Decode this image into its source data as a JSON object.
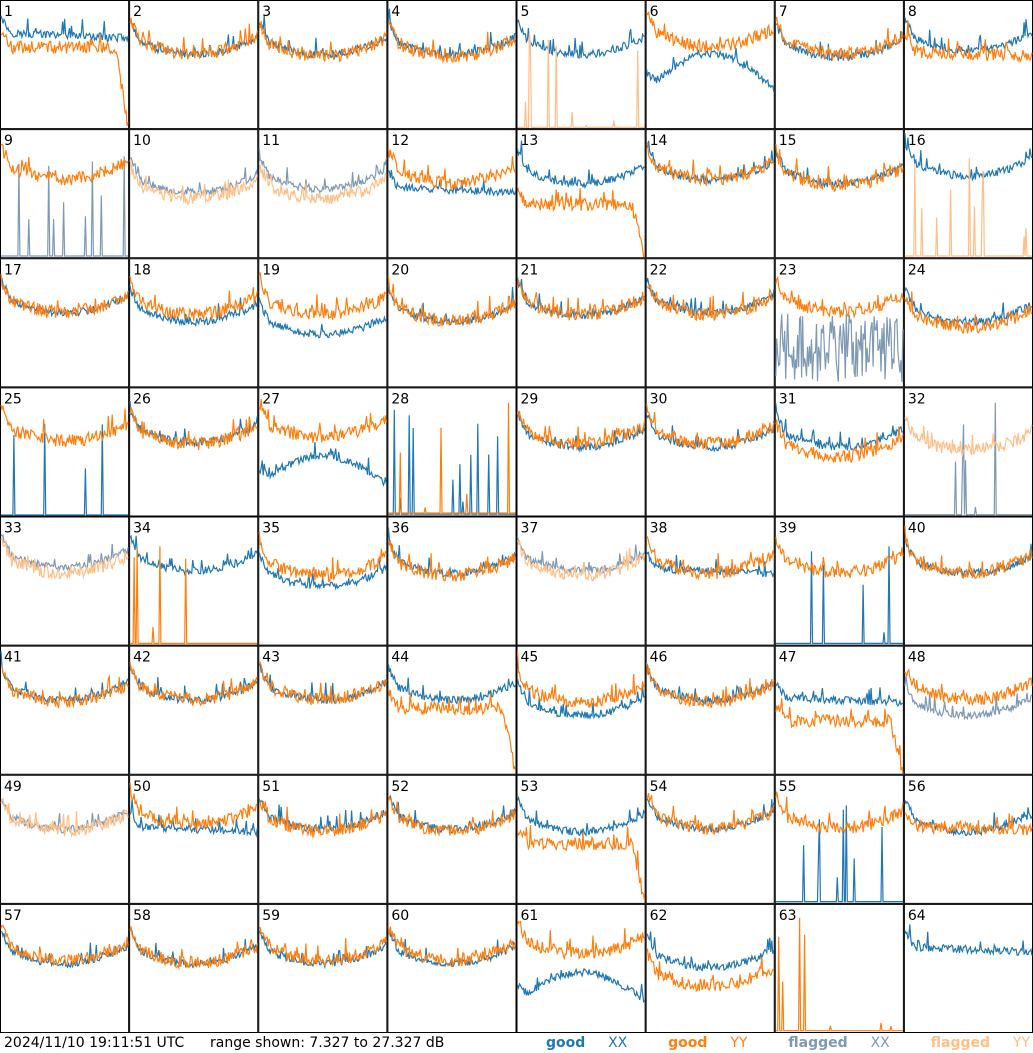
{
  "footer": {
    "timestamp": "2024/11/10 19:11:51 UTC",
    "range_text": "range shown: 7.327 to 27.327 dB"
  },
  "legend": {
    "good_xx": {
      "word": "good",
      "pol": "XX",
      "color": "#1f77b4"
    },
    "good_yy": {
      "word": "good",
      "pol": "YY",
      "color": "#ff7f0e"
    },
    "flagged_xx": {
      "word": "flagged",
      "pol": "XX",
      "color": "#7f99b4"
    },
    "flagged_yy": {
      "word": "flagged",
      "pol": "YY",
      "color": "#ffbf87"
    }
  },
  "chart_data": {
    "type": "line",
    "title": "",
    "grid_rows": 8,
    "grid_cols": 8,
    "ylim": [
      7.327,
      27.327
    ],
    "units": "dB",
    "grid": false,
    "panels": [
      {
        "label": "1",
        "xx": {
          "level": 0.7,
          "shape": "flat",
          "status": "good"
        },
        "yy": {
          "level": 0.62,
          "shape": "rolloff",
          "status": "good"
        }
      },
      {
        "label": "2",
        "xx": {
          "level": 0.62,
          "shape": "bowl",
          "status": "good"
        },
        "yy": {
          "level": 0.62,
          "shape": "bowl",
          "status": "good"
        }
      },
      {
        "label": "3",
        "xx": {
          "level": 0.62,
          "shape": "bowl",
          "status": "good"
        },
        "yy": {
          "level": 0.6,
          "shape": "bowl",
          "status": "good"
        }
      },
      {
        "label": "4",
        "xx": {
          "level": 0.62,
          "shape": "bowl",
          "status": "good"
        },
        "yy": {
          "level": 0.6,
          "shape": "bowl",
          "status": "good"
        }
      },
      {
        "label": "5",
        "xx": {
          "level": 0.62,
          "shape": "bowl",
          "status": "good"
        },
        "yy": {
          "level": 0.03,
          "shape": "spikes",
          "status": "flagged"
        }
      },
      {
        "label": "6",
        "xx": {
          "level": 0.5,
          "shape": "hump",
          "status": "good"
        },
        "yy": {
          "level": 0.68,
          "shape": "bowl",
          "status": "good"
        }
      },
      {
        "label": "7",
        "xx": {
          "level": 0.6,
          "shape": "bowl",
          "status": "good"
        },
        "yy": {
          "level": 0.62,
          "shape": "bowl",
          "status": "good"
        }
      },
      {
        "label": "8",
        "xx": {
          "level": 0.65,
          "shape": "bowl",
          "status": "good"
        },
        "yy": {
          "level": 0.55,
          "shape": "flat",
          "status": "good"
        }
      },
      {
        "label": "9",
        "xx": {
          "level": 0.05,
          "shape": "spikes",
          "status": "flagged"
        },
        "yy": {
          "level": 0.65,
          "shape": "bowl",
          "status": "good"
        }
      },
      {
        "label": "10",
        "xx": {
          "level": 0.55,
          "shape": "bowl",
          "status": "flagged"
        },
        "yy": {
          "level": 0.5,
          "shape": "bowl",
          "status": "flagged"
        }
      },
      {
        "label": "11",
        "xx": {
          "level": 0.58,
          "shape": "bowl",
          "status": "flagged"
        },
        "yy": {
          "level": 0.5,
          "shape": "bowl",
          "status": "flagged"
        }
      },
      {
        "label": "12",
        "xx": {
          "level": 0.5,
          "shape": "flat",
          "status": "good"
        },
        "yy": {
          "level": 0.62,
          "shape": "bowl",
          "status": "good"
        }
      },
      {
        "label": "13",
        "xx": {
          "level": 0.62,
          "shape": "bowl",
          "status": "good"
        },
        "yy": {
          "level": 0.4,
          "shape": "rolloff",
          "status": "good"
        }
      },
      {
        "label": "14",
        "xx": {
          "level": 0.65,
          "shape": "bowl",
          "status": "good"
        },
        "yy": {
          "level": 0.65,
          "shape": "bowl",
          "status": "good"
        }
      },
      {
        "label": "15",
        "xx": {
          "level": 0.62,
          "shape": "bowl",
          "status": "good"
        },
        "yy": {
          "level": 0.6,
          "shape": "bowl",
          "status": "good"
        }
      },
      {
        "label": "16",
        "xx": {
          "level": 0.68,
          "shape": "bowl",
          "status": "good"
        },
        "yy": {
          "level": 0.05,
          "shape": "spikes",
          "status": "flagged"
        }
      },
      {
        "label": "17",
        "xx": {
          "level": 0.62,
          "shape": "bowl",
          "status": "good"
        },
        "yy": {
          "level": 0.62,
          "shape": "bowl",
          "status": "good"
        }
      },
      {
        "label": "18",
        "xx": {
          "level": 0.55,
          "shape": "bowl",
          "status": "good"
        },
        "yy": {
          "level": 0.6,
          "shape": "bowl",
          "status": "good"
        }
      },
      {
        "label": "19",
        "xx": {
          "level": 0.45,
          "shape": "bowl",
          "status": "good"
        },
        "yy": {
          "level": 0.6,
          "shape": "bowl",
          "status": "good"
        }
      },
      {
        "label": "20",
        "xx": {
          "level": 0.55,
          "shape": "bowl",
          "status": "good"
        },
        "yy": {
          "level": 0.55,
          "shape": "bowl",
          "status": "good"
        }
      },
      {
        "label": "21",
        "xx": {
          "level": 0.6,
          "shape": "bowl",
          "status": "good"
        },
        "yy": {
          "level": 0.6,
          "shape": "bowl",
          "status": "good"
        }
      },
      {
        "label": "22",
        "xx": {
          "level": 0.62,
          "shape": "bowl",
          "status": "good"
        },
        "yy": {
          "level": 0.6,
          "shape": "bowl",
          "status": "good"
        }
      },
      {
        "label": "23",
        "xx": {
          "level": 0.3,
          "shape": "noisy",
          "status": "flagged"
        },
        "yy": {
          "level": 0.62,
          "shape": "bowl",
          "status": "good"
        }
      },
      {
        "label": "24",
        "xx": {
          "level": 0.55,
          "shape": "bowl",
          "status": "good"
        },
        "yy": {
          "level": 0.5,
          "shape": "bowl",
          "status": "good"
        }
      },
      {
        "label": "25",
        "xx": {
          "level": 0.02,
          "shape": "spikes",
          "status": "good"
        },
        "yy": {
          "level": 0.62,
          "shape": "bowl",
          "status": "good"
        }
      },
      {
        "label": "26",
        "xx": {
          "level": 0.62,
          "shape": "bowl",
          "status": "good"
        },
        "yy": {
          "level": 0.6,
          "shape": "bowl",
          "status": "good"
        }
      },
      {
        "label": "27",
        "xx": {
          "level": 0.4,
          "shape": "hump",
          "status": "good"
        },
        "yy": {
          "level": 0.65,
          "shape": "bowl",
          "status": "good"
        }
      },
      {
        "label": "28",
        "xx": {
          "level": 0.05,
          "shape": "spikes",
          "status": "good"
        },
        "yy": {
          "level": 0.1,
          "shape": "spikes",
          "status": "good"
        }
      },
      {
        "label": "29",
        "xx": {
          "level": 0.58,
          "shape": "bowl",
          "status": "good"
        },
        "yy": {
          "level": 0.6,
          "shape": "bowl",
          "status": "good"
        }
      },
      {
        "label": "30",
        "xx": {
          "level": 0.58,
          "shape": "bowl",
          "status": "good"
        },
        "yy": {
          "level": 0.6,
          "shape": "bowl",
          "status": "good"
        }
      },
      {
        "label": "31",
        "xx": {
          "level": 0.58,
          "shape": "bowl",
          "status": "good"
        },
        "yy": {
          "level": 0.5,
          "shape": "bowl",
          "status": "good"
        }
      },
      {
        "label": "32",
        "xx": {
          "level": 0.03,
          "shape": "spikes",
          "status": "flagged"
        },
        "yy": {
          "level": 0.55,
          "shape": "bowl",
          "status": "flagged"
        }
      },
      {
        "label": "33",
        "xx": {
          "level": 0.65,
          "shape": "bowl",
          "status": "flagged"
        },
        "yy": {
          "level": 0.6,
          "shape": "bowl",
          "status": "flagged"
        }
      },
      {
        "label": "34",
        "xx": {
          "level": 0.62,
          "shape": "bowl",
          "status": "good"
        },
        "yy": {
          "level": 0.05,
          "shape": "spikes",
          "status": "good"
        }
      },
      {
        "label": "35",
        "xx": {
          "level": 0.5,
          "shape": "bowl",
          "status": "good"
        },
        "yy": {
          "level": 0.58,
          "shape": "bowl",
          "status": "good"
        }
      },
      {
        "label": "36",
        "xx": {
          "level": 0.6,
          "shape": "bowl",
          "status": "good"
        },
        "yy": {
          "level": 0.58,
          "shape": "bowl",
          "status": "good"
        }
      },
      {
        "label": "37",
        "xx": {
          "level": 0.62,
          "shape": "bowl",
          "status": "flagged"
        },
        "yy": {
          "level": 0.58,
          "shape": "bowl",
          "status": "flagged"
        }
      },
      {
        "label": "38",
        "xx": {
          "level": 0.55,
          "shape": "flat",
          "status": "good"
        },
        "yy": {
          "level": 0.6,
          "shape": "bowl",
          "status": "good"
        }
      },
      {
        "label": "39",
        "xx": {
          "level": 0.05,
          "shape": "spikes",
          "status": "good"
        },
        "yy": {
          "level": 0.6,
          "shape": "bowl",
          "status": "good"
        }
      },
      {
        "label": "40",
        "xx": {
          "level": 0.6,
          "shape": "bowl",
          "status": "good"
        },
        "yy": {
          "level": 0.6,
          "shape": "bowl",
          "status": "good"
        }
      },
      {
        "label": "41",
        "xx": {
          "level": 0.62,
          "shape": "bowl",
          "status": "good"
        },
        "yy": {
          "level": 0.6,
          "shape": "bowl",
          "status": "good"
        }
      },
      {
        "label": "42",
        "xx": {
          "level": 0.62,
          "shape": "bowl",
          "status": "good"
        },
        "yy": {
          "level": 0.62,
          "shape": "bowl",
          "status": "good"
        }
      },
      {
        "label": "43",
        "xx": {
          "level": 0.62,
          "shape": "bowl",
          "status": "good"
        },
        "yy": {
          "level": 0.62,
          "shape": "bowl",
          "status": "good"
        }
      },
      {
        "label": "44",
        "xx": {
          "level": 0.62,
          "shape": "bowl",
          "status": "good"
        },
        "yy": {
          "level": 0.5,
          "shape": "rolloff",
          "status": "good"
        }
      },
      {
        "label": "45",
        "xx": {
          "level": 0.5,
          "shape": "bowl",
          "status": "good"
        },
        "yy": {
          "level": 0.6,
          "shape": "bowl",
          "status": "good"
        }
      },
      {
        "label": "46",
        "xx": {
          "level": 0.62,
          "shape": "bowl",
          "status": "good"
        },
        "yy": {
          "level": 0.6,
          "shape": "bowl",
          "status": "good"
        }
      },
      {
        "label": "47",
        "xx": {
          "level": 0.55,
          "shape": "flat",
          "status": "good"
        },
        "yy": {
          "level": 0.4,
          "shape": "rolloff",
          "status": "good"
        }
      },
      {
        "label": "48",
        "xx": {
          "level": 0.5,
          "shape": "bowl",
          "status": "flagged"
        },
        "yy": {
          "level": 0.62,
          "shape": "bowl",
          "status": "good"
        }
      },
      {
        "label": "49",
        "xx": {
          "level": 0.62,
          "shape": "bowl",
          "status": "flagged"
        },
        "yy": {
          "level": 0.6,
          "shape": "bowl",
          "status": "flagged"
        }
      },
      {
        "label": "50",
        "xx": {
          "level": 0.55,
          "shape": "flat",
          "status": "good"
        },
        "yy": {
          "level": 0.65,
          "shape": "bowl",
          "status": "good"
        }
      },
      {
        "label": "51",
        "xx": {
          "level": 0.62,
          "shape": "bowl",
          "status": "good"
        },
        "yy": {
          "level": 0.6,
          "shape": "bowl",
          "status": "good"
        }
      },
      {
        "label": "52",
        "xx": {
          "level": 0.62,
          "shape": "bowl",
          "status": "good"
        },
        "yy": {
          "level": 0.6,
          "shape": "bowl",
          "status": "good"
        }
      },
      {
        "label": "53",
        "xx": {
          "level": 0.6,
          "shape": "bowl",
          "status": "good"
        },
        "yy": {
          "level": 0.45,
          "shape": "rolloff",
          "status": "good"
        }
      },
      {
        "label": "54",
        "xx": {
          "level": 0.62,
          "shape": "bowl",
          "status": "good"
        },
        "yy": {
          "level": 0.62,
          "shape": "bowl",
          "status": "good"
        }
      },
      {
        "label": "55",
        "xx": {
          "level": 0.05,
          "shape": "spikes",
          "status": "good"
        },
        "yy": {
          "level": 0.62,
          "shape": "bowl",
          "status": "good"
        }
      },
      {
        "label": "56",
        "xx": {
          "level": 0.6,
          "shape": "bowl",
          "status": "good"
        },
        "yy": {
          "level": 0.55,
          "shape": "flat",
          "status": "good"
        }
      },
      {
        "label": "57",
        "xx": {
          "level": 0.58,
          "shape": "bowl",
          "status": "good"
        },
        "yy": {
          "level": 0.6,
          "shape": "bowl",
          "status": "good"
        }
      },
      {
        "label": "58",
        "xx": {
          "level": 0.58,
          "shape": "bowl",
          "status": "good"
        },
        "yy": {
          "level": 0.58,
          "shape": "bowl",
          "status": "good"
        }
      },
      {
        "label": "59",
        "xx": {
          "level": 0.58,
          "shape": "bowl",
          "status": "good"
        },
        "yy": {
          "level": 0.6,
          "shape": "bowl",
          "status": "good"
        }
      },
      {
        "label": "60",
        "xx": {
          "level": 0.58,
          "shape": "bowl",
          "status": "good"
        },
        "yy": {
          "level": 0.6,
          "shape": "bowl",
          "status": "good"
        }
      },
      {
        "label": "61",
        "xx": {
          "level": 0.4,
          "shape": "hump",
          "status": "good"
        },
        "yy": {
          "level": 0.65,
          "shape": "bowl",
          "status": "good"
        }
      },
      {
        "label": "62",
        "xx": {
          "level": 0.55,
          "shape": "bowl",
          "status": "good"
        },
        "yy": {
          "level": 0.4,
          "shape": "bowl",
          "status": "good"
        }
      },
      {
        "label": "63",
        "xx": {
          "level": 0.0,
          "shape": "none",
          "status": "good"
        },
        "yy": {
          "level": 0.05,
          "shape": "spikes",
          "status": "good"
        }
      },
      {
        "label": "64",
        "xx": {
          "level": 0.62,
          "shape": "flat",
          "status": "good"
        },
        "yy": {
          "level": 0.0,
          "shape": "none",
          "status": "good"
        }
      }
    ]
  }
}
